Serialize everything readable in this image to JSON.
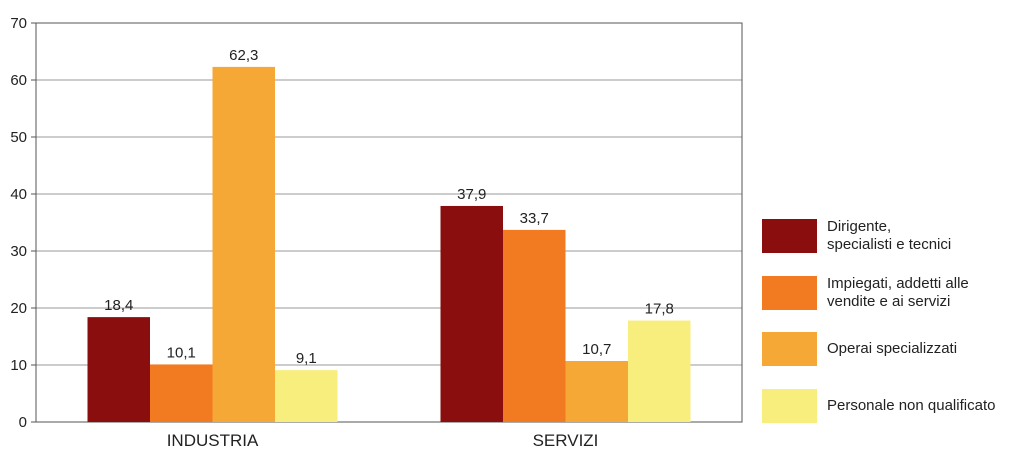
{
  "chart_data": {
    "type": "bar",
    "categories": [
      "INDUSTRIA",
      "SERVIZI"
    ],
    "series": [
      {
        "name": "Dirigente,\nspecialisti e tecnici",
        "color": "#8b0e0e",
        "values": [
          18.4,
          37.9
        ]
      },
      {
        "name": "Impiegati, addetti alle\nvendite e ai servizi",
        "color": "#f27a20",
        "values": [
          10.1,
          33.7
        ]
      },
      {
        "name": "Operai specializzati",
        "color": "#f5a836",
        "values": [
          62.3,
          10.7
        ]
      },
      {
        "name": "Personale non qualificato",
        "color": "#f8ee7e",
        "values": [
          9.1,
          17.8
        ]
      }
    ],
    "value_labels": [
      [
        "18,4",
        "37,9"
      ],
      [
        "10,1",
        "33,7"
      ],
      [
        "62,3",
        "10,7"
      ],
      [
        "9,1",
        "17,8"
      ]
    ],
    "ylim": [
      0,
      70
    ],
    "yticks": [
      0,
      10,
      20,
      30,
      40,
      50,
      60,
      70
    ],
    "grid": true,
    "legend_position": "right",
    "title": "",
    "xlabel": "",
    "ylabel": ""
  }
}
